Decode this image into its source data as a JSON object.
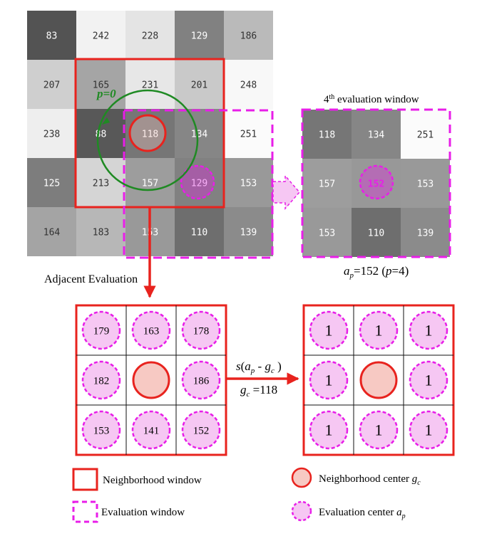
{
  "pixel_grid": {
    "values": [
      [
        83,
        242,
        228,
        129,
        186
      ],
      [
        207,
        165,
        231,
        201,
        248
      ],
      [
        238,
        88,
        118,
        134,
        251
      ],
      [
        125,
        213,
        157,
        129,
        153
      ],
      [
        164,
        183,
        153,
        110,
        139
      ]
    ]
  },
  "rotation_label": "p=0",
  "window_title": {
    "prefix": "4",
    "sup": "th",
    "rest": " evaluation window"
  },
  "eval_window": {
    "values": [
      [
        118,
        134,
        251
      ],
      [
        157,
        152,
        153
      ],
      [
        153,
        110,
        139
      ]
    ]
  },
  "ap_caption": {
    "a": "a",
    "p_sub": "p",
    "value": "=152 (",
    "p": "p",
    "eq": "=4)"
  },
  "adjacent_label": "Adjacent Evaluation",
  "neighbor_values": {
    "values": [
      [
        179,
        163,
        178
      ],
      [
        182,
        null,
        186
      ],
      [
        153,
        141,
        152
      ]
    ]
  },
  "binary_values": {
    "values": [
      [
        1,
        1,
        1
      ],
      [
        1,
        null,
        1
      ],
      [
        1,
        1,
        1
      ]
    ]
  },
  "arrow_label": {
    "s": "s",
    "open": "(",
    "a": "a",
    "p_sub": "p",
    "minus": " - ",
    "g": "g",
    "c_sub": "c",
    "close": " )"
  },
  "gc_label": {
    "g": "g",
    "c_sub": "c",
    "value": " =118"
  },
  "legend": {
    "neighborhood_window": "Neighborhood window",
    "evaluation_window": "Evaluation window",
    "neighborhood_center": "Neighborhood center ",
    "neighborhood_center_g": "g",
    "neighborhood_center_sub": "c",
    "evaluation_center": "Evaluation center ",
    "evaluation_center_a": "a",
    "evaluation_center_sub": "p"
  },
  "colors": {
    "red": "#e8231e",
    "magenta": "#e81ee8",
    "green": "#1f8a23",
    "pink_fill": "#f6c7f3",
    "salmon_fill": "#f7c9c3"
  }
}
